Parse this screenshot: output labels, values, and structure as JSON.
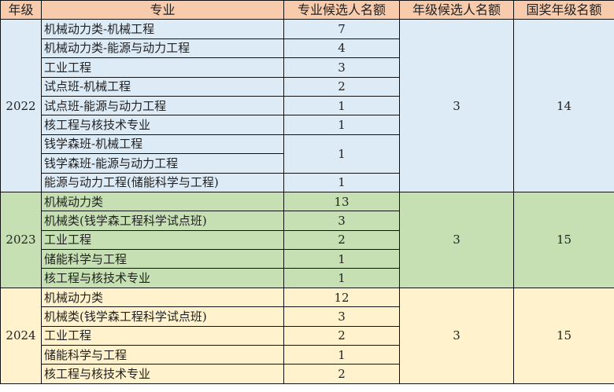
{
  "headers": [
    "年级",
    "专业",
    "专业候选人名额",
    "年级候选人名额",
    "国奖年级名额"
  ],
  "groups": [
    {
      "year": "2022",
      "grade_quota": "3",
      "national_quota": "14",
      "color": "#DDEBF7",
      "rows": [
        {
          "major": "机械动力类-机械工程",
          "quota": "7"
        },
        {
          "major": "机械动力类-能源与动力工程",
          "quota": "4"
        },
        {
          "major": "工业工程",
          "quota": "3"
        },
        {
          "major": "试点班-机械工程",
          "quota": "2"
        },
        {
          "major": "试点班-能源与动力工程",
          "quota": "1"
        },
        {
          "major": "核工程与核技术专业",
          "quota": "1"
        },
        {
          "major": "钱学森班-机械工程",
          "quota": "1"
        },
        {
          "major": "钱学森班-能源与动力工程",
          "quota": null
        },
        {
          "major": "能源与动力工程(储能科学与工程)",
          "quota": "1"
        }
      ]
    },
    {
      "year": "2023",
      "grade_quota": "3",
      "national_quota": "15",
      "color": "#C6E0B4",
      "rows": [
        {
          "major": "机械动力类",
          "quota": "13"
        },
        {
          "major": "机械类(钱学森工程科学试点班)",
          "quota": "3"
        },
        {
          "major": "工业工程",
          "quota": "2"
        },
        {
          "major": "储能科学与工程",
          "quota": "1"
        },
        {
          "major": "核工程与核技术专业",
          "quota": "1"
        }
      ]
    },
    {
      "year": "2024",
      "grade_quota": "3",
      "national_quota": "15",
      "color": "#FFF2CC",
      "rows": [
        {
          "major": "机械动力类",
          "quota": "12"
        },
        {
          "major": "机械类(钱学森工程科学试点班)",
          "quota": "3"
        },
        {
          "major": "工业工程",
          "quota": "2"
        },
        {
          "major": "储能科学与工程",
          "quota": "1"
        },
        {
          "major": "核工程与核技术专业",
          "quota": "2"
        }
      ]
    }
  ],
  "header_color": "#F8CBAD"
}
